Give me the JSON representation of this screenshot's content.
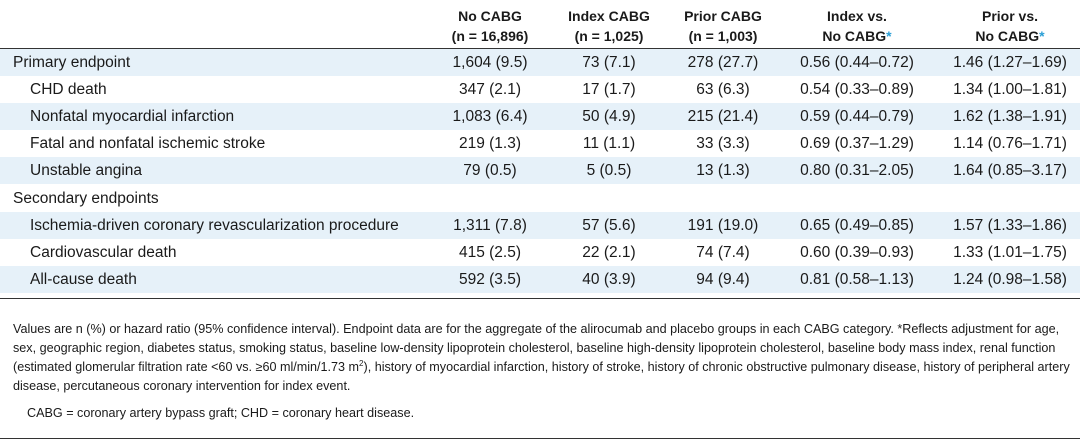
{
  "header": {
    "col1": {
      "line1": "No CABG",
      "line2": "(n = 16,896)"
    },
    "col2": {
      "line1": "Index CABG",
      "line2": "(n = 1,025)"
    },
    "col3": {
      "line1": "Prior CABG",
      "line2": "(n = 1,003)"
    },
    "col4": {
      "line1": "Index vs.",
      "line2": "No CABG",
      "asterisk": "*"
    },
    "col5": {
      "line1": "Prior vs.",
      "line2": "No CABG",
      "asterisk": "*"
    }
  },
  "rows": [
    {
      "label": "Primary endpoint",
      "c1": "1,604 (9.5)",
      "c2": "73 (7.1)",
      "c3": "278 (27.7)",
      "c4": "0.56 (0.44–0.72)",
      "c5": "1.46 (1.27–1.69)"
    },
    {
      "label": "CHD death",
      "c1": "347 (2.1)",
      "c2": "17 (1.7)",
      "c3": "63 (6.3)",
      "c4": "0.54 (0.33–0.89)",
      "c5": "1.34 (1.00–1.81)"
    },
    {
      "label": "Nonfatal myocardial infarction",
      "c1": "1,083 (6.4)",
      "c2": "50 (4.9)",
      "c3": "215 (21.4)",
      "c4": "0.59 (0.44–0.79)",
      "c5": "1.62 (1.38–1.91)"
    },
    {
      "label": "Fatal and nonfatal ischemic stroke",
      "c1": "219 (1.3)",
      "c2": "11 (1.1)",
      "c3": "33 (3.3)",
      "c4": "0.69 (0.37–1.29)",
      "c5": "1.14 (0.76–1.71)"
    },
    {
      "label": "Unstable angina",
      "c1": "79 (0.5)",
      "c2": "5 (0.5)",
      "c3": "13 (1.3)",
      "c4": "0.80 (0.31–2.05)",
      "c5": "1.64 (0.85–3.17)"
    },
    {
      "label": "Secondary endpoints",
      "c1": "",
      "c2": "",
      "c3": "",
      "c4": "",
      "c5": ""
    },
    {
      "label": "Ischemia-driven coronary revascularization procedure",
      "c1": "1,311 (7.8)",
      "c2": "57 (5.6)",
      "c3": "191 (19.0)",
      "c4": "0.65 (0.49–0.85)",
      "c5": "1.57 (1.33–1.86)"
    },
    {
      "label": "Cardiovascular death",
      "c1": "415 (2.5)",
      "c2": "22 (2.1)",
      "c3": "74 (7.4)",
      "c4": "0.60 (0.39–0.93)",
      "c5": "1.33 (1.01–1.75)"
    },
    {
      "label": "All-cause death",
      "c1": "592 (3.5)",
      "c2": "40 (3.9)",
      "c3": "94 (9.4)",
      "c4": "0.81 (0.58–1.13)",
      "c5": "1.24 (0.98–1.58)"
    }
  ],
  "footnote": {
    "part1": "Values are n (%) or hazard ratio (95% confidence interval). Endpoint data are for the aggregate of the alirocumab and placebo groups in each CABG category. *Reflects adjustment for age, sex, geographic region, diabetes status, smoking status, baseline low-density lipoprotein cholesterol, baseline high-density lipoprotein cholesterol, baseline body mass index, renal function (estimated glomerular filtration rate <60 vs. ≥60 ml/min/1.73 m",
    "sup": "2",
    "part2": "), history of myocardial infarction, history of stroke, history of chronic obstructive pulmonary disease, history of peripheral artery disease, percutaneous coronary intervention for index event.",
    "abbreviations": "CABG = coronary artery bypass graft; CHD = coronary heart disease."
  },
  "colors": {
    "shade": "#e6f1f9",
    "accent": "#2a9fd6",
    "rule": "#333333"
  }
}
